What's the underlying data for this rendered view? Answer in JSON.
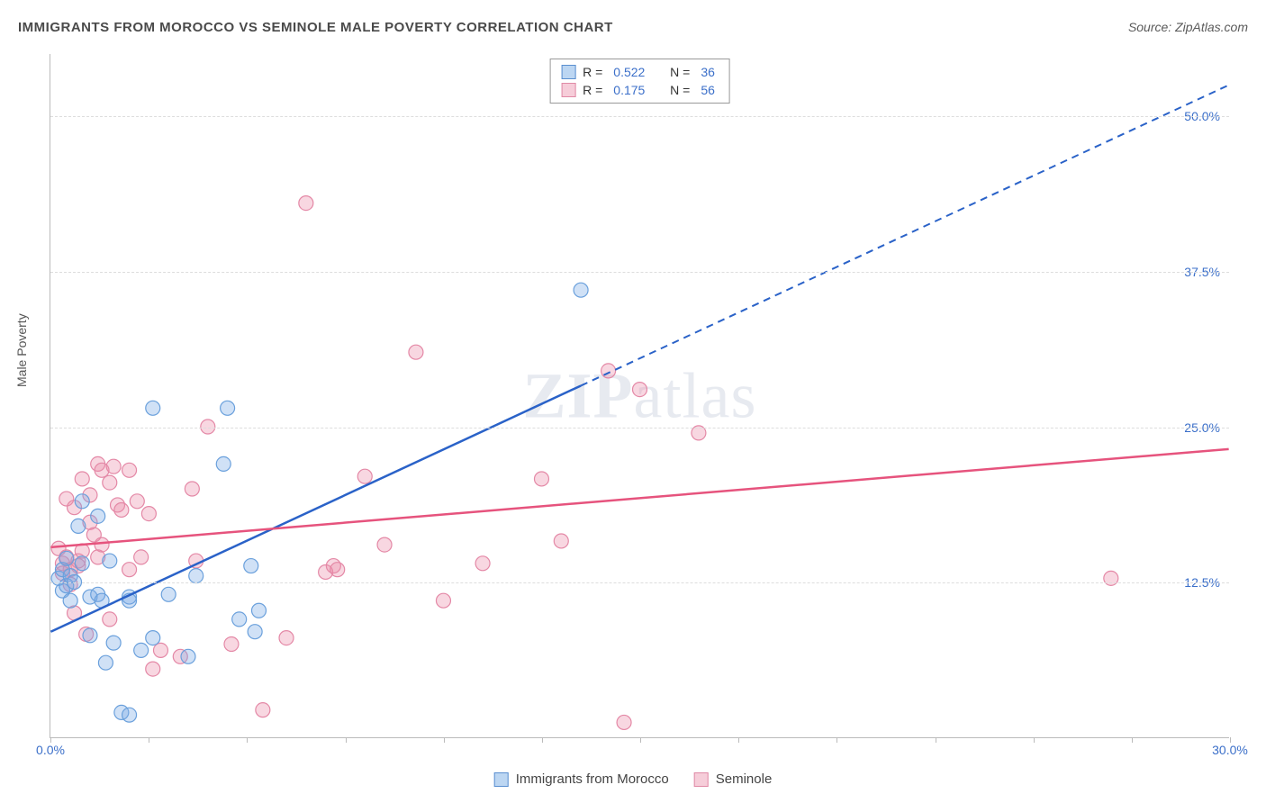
{
  "title": "IMMIGRANTS FROM MOROCCO VS SEMINOLE MALE POVERTY CORRELATION CHART",
  "source": "Source: ZipAtlas.com",
  "ylabel": "Male Poverty",
  "watermark_a": "ZIP",
  "watermark_b": "atlas",
  "chart": {
    "type": "scatter",
    "xlim": [
      0,
      30
    ],
    "ylim": [
      0,
      55
    ],
    "xtick_positions": [
      0,
      2.5,
      5,
      7.5,
      10,
      12.5,
      15,
      17.5,
      20,
      22.5,
      25,
      27.5,
      30
    ],
    "xtick_labels": {
      "0": "0.0%",
      "30": "30.0%"
    },
    "ytick_positions": [
      12.5,
      25.0,
      37.5,
      50.0
    ],
    "ytick_labels": [
      "12.5%",
      "25.0%",
      "37.5%",
      "50.0%"
    ],
    "grid_color": "#dddddd",
    "background_color": "#ffffff",
    "series": [
      {
        "name": "Immigrants from Morocco",
        "color_fill": "rgba(120,170,230,0.35)",
        "color_stroke": "#6aa0dc",
        "swatch_fill": "#bcd6f2",
        "swatch_stroke": "#5a8fd0",
        "marker_radius": 8,
        "R": "0.522",
        "N": "36",
        "trend": {
          "x1": 0,
          "y1": 8.5,
          "x2": 30,
          "y2": 52.5,
          "solid_until_x": 13.5,
          "color": "#2a62c8",
          "width": 2.5
        },
        "points": [
          [
            0.2,
            12.8
          ],
          [
            0.3,
            13.5
          ],
          [
            0.3,
            11.8
          ],
          [
            0.4,
            12.2
          ],
          [
            0.4,
            14.4
          ],
          [
            0.5,
            13.0
          ],
          [
            0.5,
            11.0
          ],
          [
            0.6,
            12.5
          ],
          [
            0.7,
            17.0
          ],
          [
            0.8,
            14.0
          ],
          [
            0.8,
            19.0
          ],
          [
            1.0,
            11.3
          ],
          [
            1.0,
            8.2
          ],
          [
            1.2,
            17.8
          ],
          [
            1.2,
            11.5
          ],
          [
            1.3,
            11.0
          ],
          [
            1.4,
            6.0
          ],
          [
            1.5,
            14.2
          ],
          [
            1.6,
            7.6
          ],
          [
            1.8,
            2.0
          ],
          [
            2.0,
            11.3
          ],
          [
            2.0,
            11.0
          ],
          [
            2.0,
            1.8
          ],
          [
            2.3,
            7.0
          ],
          [
            2.6,
            8.0
          ],
          [
            2.6,
            26.5
          ],
          [
            3.0,
            11.5
          ],
          [
            3.5,
            6.5
          ],
          [
            3.7,
            13.0
          ],
          [
            4.4,
            22.0
          ],
          [
            4.5,
            26.5
          ],
          [
            4.8,
            9.5
          ],
          [
            5.1,
            13.8
          ],
          [
            5.2,
            8.5
          ],
          [
            5.3,
            10.2
          ],
          [
            13.5,
            36.0
          ]
        ]
      },
      {
        "name": "Seminole",
        "color_fill": "rgba(235,140,170,0.35)",
        "color_stroke": "#e488a6",
        "swatch_fill": "#f6cdd9",
        "swatch_stroke": "#e08aa6",
        "marker_radius": 8,
        "R": "0.175",
        "N": "56",
        "trend": {
          "x1": 0,
          "y1": 15.3,
          "x2": 30,
          "y2": 23.2,
          "solid_until_x": 30,
          "color": "#e6537d",
          "width": 2.5
        },
        "points": [
          [
            0.2,
            15.2
          ],
          [
            0.3,
            14.0
          ],
          [
            0.3,
            13.2
          ],
          [
            0.4,
            19.2
          ],
          [
            0.4,
            14.5
          ],
          [
            0.5,
            13.5
          ],
          [
            0.5,
            12.3
          ],
          [
            0.6,
            18.5
          ],
          [
            0.6,
            10.0
          ],
          [
            0.7,
            14.2
          ],
          [
            0.7,
            13.8
          ],
          [
            0.8,
            20.8
          ],
          [
            0.8,
            15.0
          ],
          [
            0.9,
            8.3
          ],
          [
            1.0,
            17.3
          ],
          [
            1.0,
            19.5
          ],
          [
            1.1,
            16.3
          ],
          [
            1.2,
            22.0
          ],
          [
            1.2,
            14.5
          ],
          [
            1.3,
            21.5
          ],
          [
            1.3,
            15.5
          ],
          [
            1.5,
            9.5
          ],
          [
            1.5,
            20.5
          ],
          [
            1.6,
            21.8
          ],
          [
            1.7,
            18.7
          ],
          [
            1.8,
            18.3
          ],
          [
            2.0,
            21.5
          ],
          [
            2.0,
            13.5
          ],
          [
            2.2,
            19.0
          ],
          [
            2.3,
            14.5
          ],
          [
            2.5,
            18.0
          ],
          [
            2.6,
            5.5
          ],
          [
            2.8,
            7.0
          ],
          [
            3.3,
            6.5
          ],
          [
            3.6,
            20.0
          ],
          [
            3.7,
            14.2
          ],
          [
            4.0,
            25.0
          ],
          [
            4.6,
            7.5
          ],
          [
            5.4,
            2.2
          ],
          [
            6.0,
            8.0
          ],
          [
            6.5,
            43.0
          ],
          [
            7.0,
            13.3
          ],
          [
            7.2,
            13.8
          ],
          [
            7.3,
            13.5
          ],
          [
            8.0,
            21.0
          ],
          [
            8.5,
            15.5
          ],
          [
            9.3,
            31.0
          ],
          [
            10.0,
            11.0
          ],
          [
            11.0,
            14.0
          ],
          [
            12.5,
            20.8
          ],
          [
            13.0,
            15.8
          ],
          [
            14.2,
            29.5
          ],
          [
            14.6,
            1.2
          ],
          [
            15.0,
            28.0
          ],
          [
            16.5,
            24.5
          ],
          [
            27.0,
            12.8
          ]
        ]
      }
    ]
  },
  "legend_top": {
    "r_label": "R =",
    "n_label": "N ="
  },
  "legend_bottom": {
    "items": [
      "Immigrants from Morocco",
      "Seminole"
    ]
  }
}
